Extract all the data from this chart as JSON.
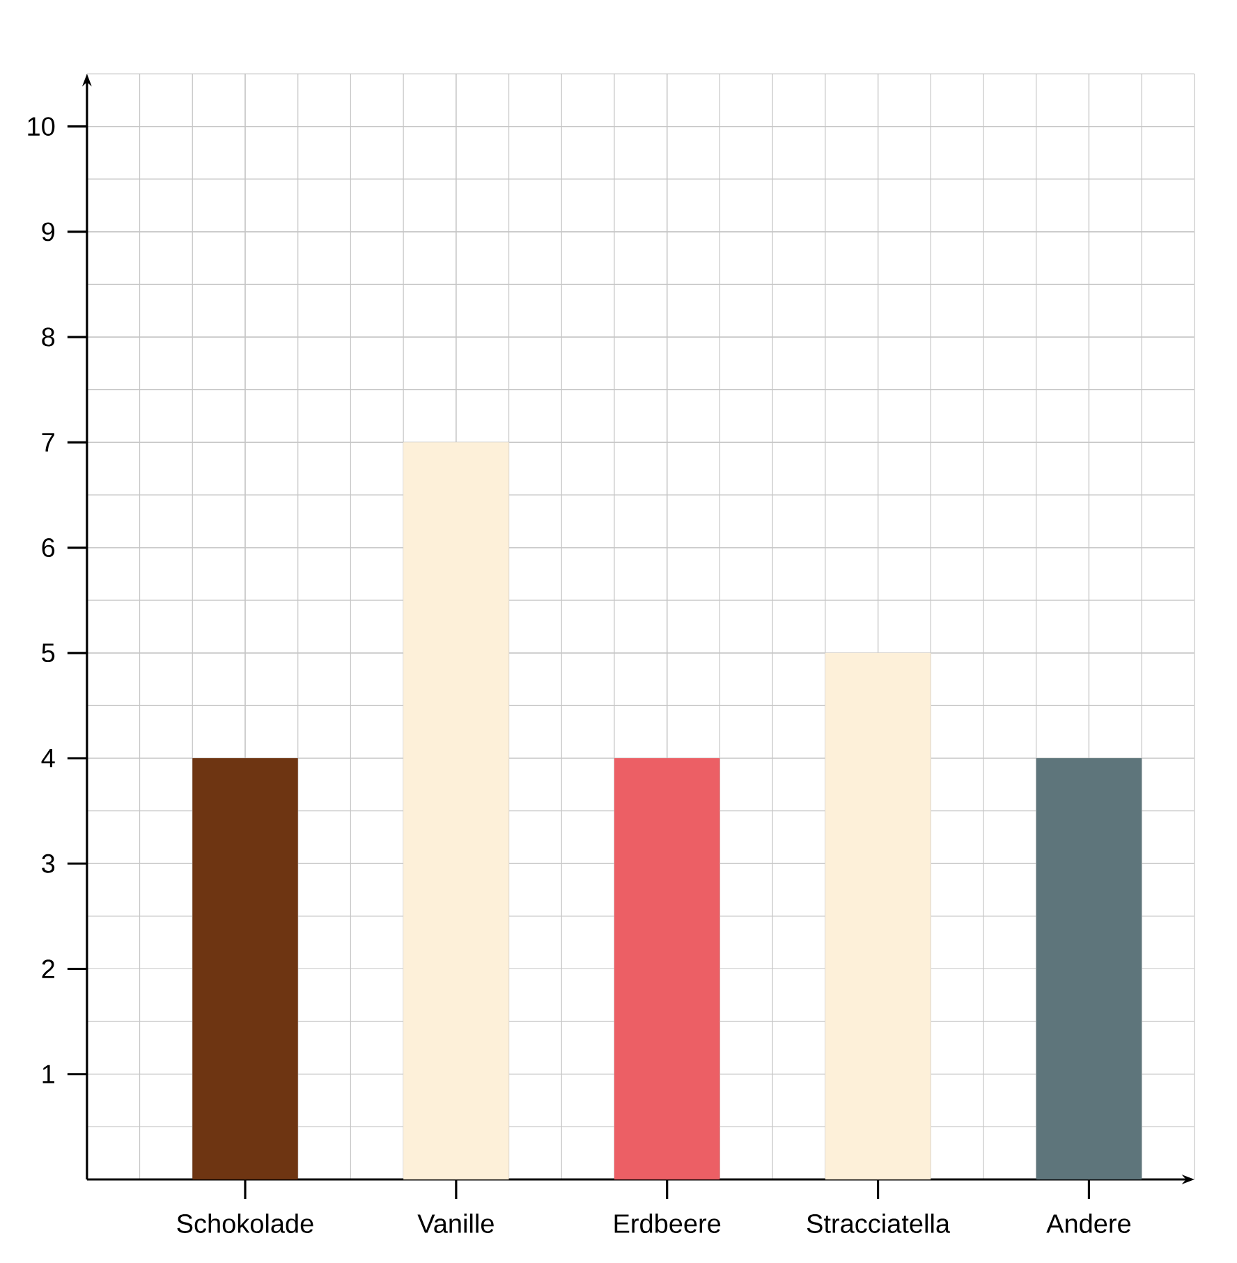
{
  "chart_data": {
    "type": "bar",
    "categories": [
      "Schokolade",
      "Vanille",
      "Erdbeere",
      "Stracciatella",
      "Andere"
    ],
    "values": [
      4,
      7,
      4,
      5,
      4
    ],
    "colors": [
      "#6e3512",
      "#fdf0d9",
      "#ec5f65",
      "#fdf0d9",
      "#5e757b"
    ],
    "ylim": [
      0,
      10.5
    ],
    "yticks": [
      1,
      2,
      3,
      4,
      5,
      6,
      7,
      8,
      9,
      10
    ],
    "grid": true
  }
}
